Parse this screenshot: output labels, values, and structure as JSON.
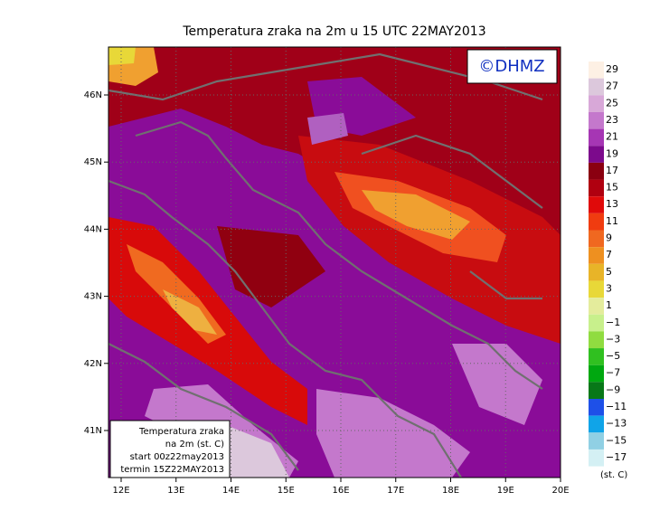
{
  "title": "Temperatura zraka na 2m u 15 UTC 22MAY2013",
  "logo": "©DHMZ",
  "map": {
    "lon_ticks": [
      "12E",
      "13E",
      "14E",
      "15E",
      "16E",
      "17E",
      "18E",
      "19E",
      "20E"
    ],
    "lat_ticks": [
      "46N",
      "45N",
      "44N",
      "43N",
      "42N",
      "41N"
    ]
  },
  "info_box": [
    "Temperatura zraka",
    "na 2m (st. C)",
    "start 00z22may2013",
    "termin 15Z22MAY2013"
  ],
  "colorbar": {
    "labels": [
      "29",
      "27",
      "25",
      "23",
      "21",
      "19",
      "17",
      "15",
      "13",
      "11",
      "9",
      "7",
      "5",
      "3",
      "1",
      "−1",
      "−3",
      "−5",
      "−7",
      "−9",
      "−11",
      "−13",
      "−15",
      "−17"
    ],
    "colors": [
      "#fdf0e4",
      "#dcc8dc",
      "#d8a8d8",
      "#c478cc",
      "#a636b4",
      "#7c0a8c",
      "#8a0010",
      "#b00010",
      "#e00a0a",
      "#f03c10",
      "#f06820",
      "#ee9020",
      "#e8b428",
      "#e8d838",
      "#e4ec9c",
      "#c8f08c",
      "#90dc40",
      "#30c020",
      "#00a810",
      "#087818",
      "#1e50e8",
      "#10a4e8",
      "#90d0e4",
      "#d4f0f4"
    ],
    "unit": "(st. C)"
  }
}
